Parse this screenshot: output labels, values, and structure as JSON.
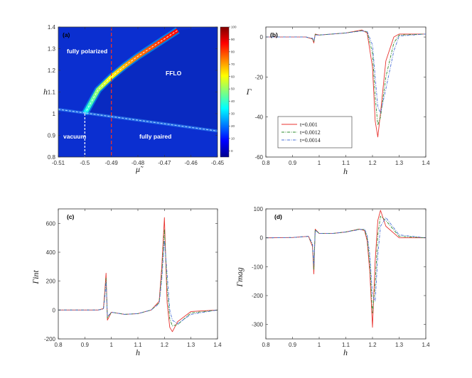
{
  "chart_data": [
    {
      "panel": "(a)",
      "type": "heatmap",
      "xlabel": "μ̃",
      "ylabel": "h",
      "xlim": [
        -0.51,
        -0.45
      ],
      "ylim": [
        0.8,
        1.4
      ],
      "xticks": [
        "-0.51",
        "-0.5",
        "-0.49",
        "-0.48",
        "-0.47",
        "-0.46",
        "-0.45"
      ],
      "yticks": [
        "0.8",
        "0.9",
        "1",
        "1.1",
        "1.2",
        "1.3",
        "1.4"
      ],
      "colorbar": {
        "range": [
          -5,
          100
        ],
        "ticks": [
          "100",
          "90",
          "80",
          "70",
          "60",
          "50",
          "40",
          "30",
          "20",
          "10",
          "0"
        ]
      },
      "regions": [
        "fully polarized",
        "FFLO",
        "vacuum",
        "fully paired"
      ],
      "vertical_marker_mu": -0.49,
      "boundaries": {
        "upper_ridge": {
          "mu": [
            -0.5,
            -0.495,
            -0.49,
            -0.485,
            -0.48,
            -0.475,
            -0.47,
            -0.465
          ],
          "h": [
            1.0,
            1.11,
            1.17,
            1.22,
            1.265,
            1.305,
            1.345,
            1.385
          ]
        },
        "lower_line": {
          "mu": [
            -0.51,
            -0.45
          ],
          "h": [
            1.02,
            0.92
          ]
        },
        "vacuum_line_mu": -0.5
      }
    },
    {
      "panel": "(b)",
      "type": "line",
      "xlabel": "h",
      "ylabel": "Γ",
      "xlim": [
        0.8,
        1.4
      ],
      "ylim": [
        -60,
        5
      ],
      "xticks": [
        "0.8",
        "0.9",
        "1",
        "1.1",
        "1.2",
        "1.3",
        "1.4"
      ],
      "yticks": [
        "0",
        "-20",
        "-40",
        "-60"
      ],
      "legend": [
        "t=0.001",
        "t=0.0012",
        "t=0.0014"
      ],
      "series": [
        {
          "name": "t=0.001",
          "x": [
            0.8,
            0.95,
            0.975,
            0.98,
            0.985,
            1.0,
            1.1,
            1.16,
            1.18,
            1.2,
            1.21,
            1.22,
            1.23,
            1.25,
            1.28,
            1.3,
            1.4
          ],
          "y": [
            0,
            0,
            -1,
            -3,
            1.5,
            1,
            2,
            3.5,
            2,
            -15,
            -42,
            -50,
            -38,
            -12,
            0,
            1.5,
            1.5
          ]
        },
        {
          "name": "t=0.0012",
          "x": [
            0.8,
            0.95,
            0.975,
            0.98,
            0.985,
            1.0,
            1.1,
            1.16,
            1.18,
            1.2,
            1.21,
            1.22,
            1.23,
            1.25,
            1.28,
            1.3,
            1.4
          ],
          "y": [
            0,
            0,
            -0.8,
            -2.5,
            1.2,
            1,
            2,
            3.2,
            2.5,
            -8,
            -30,
            -44,
            -40,
            -20,
            -3,
            1,
            1.5
          ]
        },
        {
          "name": "t=0.0014",
          "x": [
            0.8,
            0.95,
            0.975,
            0.98,
            0.985,
            1.0,
            1.1,
            1.16,
            1.18,
            1.2,
            1.21,
            1.22,
            1.23,
            1.25,
            1.28,
            1.3,
            1.4
          ],
          "y": [
            0,
            0,
            -0.6,
            -2,
            1,
            1,
            2,
            3,
            2.8,
            -4,
            -20,
            -35,
            -38,
            -26,
            -7,
            0.5,
            1.5
          ]
        }
      ]
    },
    {
      "panel": "(c)",
      "type": "line",
      "xlabel": "h",
      "ylabel": "Γint",
      "xlim": [
        0.8,
        1.4
      ],
      "ylim": [
        -200,
        700
      ],
      "xticks": [
        "0.8",
        "0.9",
        "1",
        "1.1",
        "1.2",
        "1.3",
        "1.4"
      ],
      "yticks": [
        "600",
        "400",
        "200",
        "0",
        "-200"
      ],
      "series": [
        {
          "name": "t=0.001",
          "x": [
            0.8,
            0.95,
            0.97,
            0.975,
            0.98,
            0.985,
            1.0,
            1.05,
            1.1,
            1.15,
            1.18,
            1.19,
            1.2,
            1.21,
            1.22,
            1.23,
            1.25,
            1.3,
            1.4
          ],
          "y": [
            0,
            0,
            10,
            120,
            255,
            -70,
            -15,
            -30,
            -25,
            0,
            60,
            300,
            640,
            50,
            -120,
            -150,
            -80,
            -10,
            0
          ]
        },
        {
          "name": "t=0.0012",
          "x": [
            0.8,
            0.95,
            0.97,
            0.975,
            0.98,
            0.985,
            1.0,
            1.05,
            1.1,
            1.15,
            1.18,
            1.19,
            1.2,
            1.21,
            1.22,
            1.23,
            1.25,
            1.3,
            1.4
          ],
          "y": [
            0,
            0,
            8,
            100,
            220,
            -55,
            -15,
            -30,
            -25,
            0,
            50,
            250,
            560,
            150,
            -60,
            -110,
            -100,
            -20,
            0
          ]
        },
        {
          "name": "t=0.0014",
          "x": [
            0.8,
            0.95,
            0.97,
            0.975,
            0.98,
            0.985,
            1.0,
            1.05,
            1.1,
            1.15,
            1.18,
            1.19,
            1.2,
            1.21,
            1.22,
            1.23,
            1.25,
            1.3,
            1.4
          ],
          "y": [
            0,
            0,
            6,
            80,
            195,
            -45,
            -15,
            -30,
            -25,
            0,
            45,
            210,
            480,
            250,
            0,
            -70,
            -95,
            -30,
            0
          ]
        }
      ]
    },
    {
      "panel": "(d)",
      "type": "line",
      "xlabel": "h",
      "ylabel": "Γmag",
      "xlim": [
        0.8,
        1.4
      ],
      "ylim": [
        -350,
        100
      ],
      "xticks": [
        "0.8",
        "0.9",
        "1",
        "1.1",
        "1.2",
        "1.3",
        "1.4"
      ],
      "yticks": [
        "100",
        "0",
        "-100",
        "-200",
        "-300"
      ],
      "series": [
        {
          "name": "t=0.001",
          "x": [
            0.8,
            0.9,
            0.96,
            0.975,
            0.98,
            0.985,
            1.0,
            1.05,
            1.1,
            1.15,
            1.17,
            1.18,
            1.19,
            1.2,
            1.21,
            1.22,
            1.23,
            1.25,
            1.3,
            1.4
          ],
          "y": [
            0,
            1,
            5,
            -30,
            -125,
            30,
            15,
            15,
            20,
            30,
            25,
            -10,
            -120,
            -310,
            -80,
            60,
            95,
            40,
            0,
            0
          ]
        },
        {
          "name": "t=0.0012",
          "x": [
            0.8,
            0.9,
            0.96,
            0.975,
            0.98,
            0.985,
            1.0,
            1.05,
            1.1,
            1.15,
            1.17,
            1.18,
            1.19,
            1.2,
            1.21,
            1.22,
            1.23,
            1.25,
            1.3,
            1.4
          ],
          "y": [
            0,
            1,
            5,
            -25,
            -110,
            28,
            15,
            15,
            20,
            30,
            28,
            0,
            -90,
            -260,
            -160,
            10,
            75,
            60,
            5,
            0
          ]
        },
        {
          "name": "t=0.0014",
          "x": [
            0.8,
            0.9,
            0.96,
            0.975,
            0.98,
            0.985,
            1.0,
            1.05,
            1.1,
            1.15,
            1.17,
            1.18,
            1.19,
            1.2,
            1.21,
            1.22,
            1.23,
            1.25,
            1.3,
            1.4
          ],
          "y": [
            0,
            1,
            5,
            -20,
            -95,
            26,
            15,
            15,
            20,
            28,
            30,
            10,
            -60,
            -200,
            -220,
            -60,
            40,
            70,
            10,
            0
          ]
        }
      ]
    }
  ],
  "colors": {
    "t=0.001": "#e8332f",
    "t=0.0012": "#2e8b2e",
    "t=0.0014": "#4a6fd6",
    "heat_bg": "#0b2fd0",
    "marker_red": "#e8332f"
  }
}
